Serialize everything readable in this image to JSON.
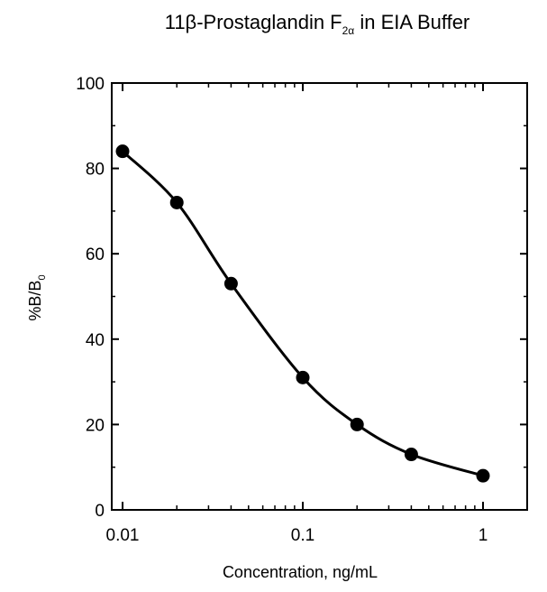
{
  "colors": {
    "line": "#000000",
    "marker": "#000000",
    "axis": "#000000",
    "background": "#ffffff"
  },
  "chart_data": {
    "type": "line",
    "title": {
      "prefix": "11β-Prostaglandin F",
      "subscript": "2α",
      "suffix": " in EIA Buffer"
    },
    "xlabel": "Concentration, ng/mL",
    "ylabel": {
      "main": "%B/B",
      "subscript": "0"
    },
    "x_scale": "log",
    "xlim": [
      0.01,
      1
    ],
    "ylim": [
      0,
      100
    ],
    "x_tick_values": [
      0.01,
      0.1,
      1
    ],
    "x_tick_labels": [
      "0.01",
      "0.1",
      "1"
    ],
    "y_tick_values": [
      0,
      20,
      40,
      60,
      80,
      100
    ],
    "y_tick_labels": [
      "0",
      "20",
      "40",
      "60",
      "80",
      "100"
    ],
    "grid": false,
    "series": [
      {
        "marker": "circle",
        "x": [
          0.01,
          0.02,
          0.04,
          0.1,
          0.2,
          0.4,
          1
        ],
        "y": [
          84,
          72,
          53,
          31,
          20,
          13,
          8
        ]
      }
    ]
  }
}
